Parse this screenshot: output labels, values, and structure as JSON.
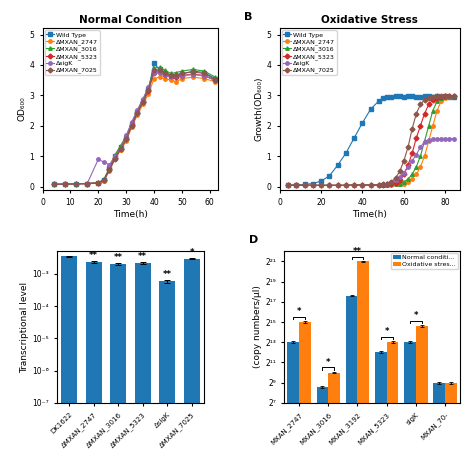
{
  "chart_data": [
    {
      "type": "line",
      "title": "Normal Condition",
      "xlabel": "Time(h)",
      "ylabel": "OD₆₀₀",
      "x": [
        4,
        8,
        12,
        16,
        20,
        22,
        24,
        26,
        28,
        30,
        32,
        34,
        36,
        38,
        40,
        42,
        44,
        46,
        48,
        50,
        54,
        58,
        62
      ],
      "series": [
        {
          "name": "Wild Type",
          "marker": "square",
          "values": [
            0.07,
            0.08,
            0.09,
            0.1,
            0.12,
            0.22,
            0.6,
            1.0,
            1.3,
            1.6,
            2.05,
            2.45,
            2.8,
            3.2,
            4.05,
            3.85,
            3.75,
            3.65,
            3.65,
            3.7,
            3.8,
            3.75,
            3.55
          ]
        },
        {
          "name": "ΔMXAN_2747",
          "marker": "circle",
          "values": [
            0.07,
            0.08,
            0.09,
            0.1,
            0.11,
            0.18,
            0.52,
            0.9,
            1.2,
            1.5,
            1.95,
            2.35,
            2.7,
            3.05,
            3.55,
            3.6,
            3.55,
            3.5,
            3.45,
            3.55,
            3.6,
            3.55,
            3.45
          ]
        },
        {
          "name": "ΔMXAN_3016",
          "marker": "triangle",
          "values": [
            0.07,
            0.08,
            0.09,
            0.1,
            0.12,
            0.24,
            0.62,
            1.05,
            1.35,
            1.65,
            2.1,
            2.5,
            2.85,
            3.25,
            3.9,
            3.92,
            3.82,
            3.72,
            3.75,
            3.8,
            3.85,
            3.8,
            3.6
          ]
        },
        {
          "name": "ΔMXAN_5323",
          "marker": "diamond",
          "values": [
            0.07,
            0.08,
            0.09,
            0.1,
            0.12,
            0.2,
            0.57,
            0.95,
            1.25,
            1.58,
            2.02,
            2.42,
            2.77,
            3.15,
            3.75,
            3.78,
            3.68,
            3.62,
            3.6,
            3.65,
            3.7,
            3.65,
            3.5
          ]
        },
        {
          "name": "ΔsigK",
          "marker": "circle",
          "values": [
            0.07,
            0.08,
            0.09,
            0.1,
            0.9,
            0.8,
            0.72,
            1.0,
            1.25,
            1.68,
            2.12,
            2.52,
            2.88,
            3.28,
            3.72,
            3.75,
            3.68,
            3.62,
            3.62,
            3.65,
            3.68,
            3.65,
            3.48
          ]
        },
        {
          "name": "ΔMXAN_7025",
          "marker": "diamond",
          "values": [
            0.07,
            0.08,
            0.09,
            0.1,
            0.11,
            0.2,
            0.56,
            0.92,
            1.22,
            1.55,
            2.0,
            2.42,
            2.78,
            3.18,
            3.82,
            3.84,
            3.74,
            3.67,
            3.68,
            3.72,
            3.77,
            3.72,
            3.52
          ]
        }
      ],
      "xlim": [
        0,
        63
      ],
      "xticks": [
        0,
        10,
        20,
        30,
        40,
        50,
        60
      ],
      "ylim": [
        -0.1,
        5.2
      ],
      "yticks": [
        0,
        1,
        2,
        3,
        4,
        5
      ],
      "legend": "upper left"
    },
    {
      "type": "line",
      "title": "Oxidative Stress",
      "xlabel": "Time(h)",
      "ylabel": "Growth(OD₆₀₀)",
      "x": [
        4,
        8,
        12,
        16,
        20,
        24,
        28,
        32,
        36,
        40,
        44,
        48,
        50,
        52,
        54,
        56,
        58,
        60,
        62,
        64,
        66,
        68,
        70,
        72,
        74,
        76,
        78,
        80,
        82,
        84
      ],
      "series": [
        {
          "name": "Wild Type",
          "marker": "square",
          "values": [
            0.05,
            0.06,
            0.07,
            0.1,
            0.18,
            0.35,
            0.7,
            1.1,
            1.6,
            2.1,
            2.55,
            2.82,
            2.92,
            2.95,
            2.95,
            2.97,
            2.97,
            2.96,
            2.97,
            2.97,
            2.96,
            2.96,
            2.97,
            2.97,
            2.96,
            2.97,
            2.96,
            2.97,
            2.96,
            2.96
          ]
        },
        {
          "name": "ΔMXAN_2747",
          "marker": "circle",
          "values": [
            0.04,
            0.04,
            0.04,
            0.04,
            0.04,
            0.04,
            0.04,
            0.04,
            0.05,
            0.05,
            0.05,
            0.05,
            0.05,
            0.06,
            0.06,
            0.07,
            0.08,
            0.1,
            0.15,
            0.25,
            0.4,
            0.65,
            1.0,
            1.5,
            2.0,
            2.5,
            2.8,
            2.9,
            2.95,
            2.97
          ]
        },
        {
          "name": "ΔMXAN_3016",
          "marker": "triangle",
          "values": [
            0.04,
            0.04,
            0.04,
            0.04,
            0.04,
            0.04,
            0.04,
            0.04,
            0.05,
            0.05,
            0.05,
            0.05,
            0.05,
            0.06,
            0.07,
            0.08,
            0.1,
            0.15,
            0.25,
            0.4,
            0.65,
            1.0,
            1.5,
            2.0,
            2.5,
            2.8,
            2.9,
            2.95,
            2.97,
            2.97
          ]
        },
        {
          "name": "ΔMXAN_5323",
          "marker": "diamond",
          "values": [
            0.04,
            0.04,
            0.04,
            0.04,
            0.04,
            0.04,
            0.04,
            0.04,
            0.05,
            0.05,
            0.05,
            0.05,
            0.06,
            0.07,
            0.08,
            0.12,
            0.2,
            0.4,
            0.7,
            1.1,
            1.6,
            2.0,
            2.4,
            2.7,
            2.85,
            2.92,
            2.95,
            2.97,
            2.97,
            2.97
          ]
        },
        {
          "name": "ΔsigK",
          "marker": "circle",
          "values": [
            0.04,
            0.04,
            0.04,
            0.04,
            0.04,
            0.04,
            0.04,
            0.04,
            0.04,
            0.05,
            0.05,
            0.06,
            0.07,
            0.1,
            0.15,
            0.22,
            0.32,
            0.45,
            0.65,
            0.85,
            1.05,
            1.3,
            1.48,
            1.52,
            1.55,
            1.57,
            1.58,
            1.58,
            1.58,
            1.58
          ]
        },
        {
          "name": "ΔMXAN_7025",
          "marker": "diamond",
          "values": [
            0.04,
            0.04,
            0.04,
            0.04,
            0.04,
            0.04,
            0.04,
            0.04,
            0.05,
            0.05,
            0.05,
            0.06,
            0.07,
            0.1,
            0.16,
            0.28,
            0.5,
            0.85,
            1.3,
            1.9,
            2.4,
            2.7,
            2.85,
            2.92,
            2.95,
            2.97,
            2.97,
            2.97,
            2.97,
            2.97
          ]
        }
      ],
      "xlim": [
        0,
        87
      ],
      "xticks": [
        0,
        20,
        40,
        60,
        80
      ],
      "ylim": [
        -0.1,
        5.2
      ],
      "yticks": [
        0,
        1,
        2,
        3,
        4,
        5
      ],
      "legend": "upper left",
      "annotations": [
        {
          "text": "B"
        }
      ]
    },
    {
      "type": "bar",
      "ylabel": "Transcriptional level",
      "categories": [
        "DK1622",
        "ΔMXAN_2747",
        "ΔMXAN_3016",
        "ΔMXAN_5323",
        "ΔsigK",
        "ΔMXAN_7025"
      ],
      "values": [
        0.0035,
        0.0023,
        0.00205,
        0.0022,
        0.00058,
        0.00295
      ],
      "errors": [
        0.0001,
        0.00016,
        0.00015,
        0.00014,
        6e-05,
        0.00016
      ],
      "log": "y",
      "ylim": [
        1e-07,
        0.005
      ],
      "yticks": [
        {
          "value": 1e-07,
          "label": "10⁻⁷"
        },
        {
          "value": 1e-06,
          "label": "10⁻⁶"
        },
        {
          "value": 1e-05,
          "label": "10⁻⁵"
        },
        {
          "value": 0.0001,
          "label": "10⁻⁴"
        },
        {
          "value": 0.001,
          "label": "10⁻³"
        }
      ],
      "annotations": [
        {
          "category": "ΔMXAN_2747",
          "text": "**"
        },
        {
          "category": "ΔMXAN_3016",
          "text": "**"
        },
        {
          "category": "ΔMXAN_5323",
          "text": "**"
        },
        {
          "category": "ΔsigK",
          "text": "**"
        },
        {
          "category": "ΔMXAN_7025",
          "text": "*"
        }
      ]
    },
    {
      "type": "bar",
      "ylabel": "(copy numbers/μl)",
      "categories": [
        "MXAN_2747",
        "MXAN_3016",
        "MXAN_3192",
        "MXAN_5323",
        "sigK",
        "MXAN_70-"
      ],
      "series": [
        {
          "name": "Normal conditi...",
          "values": [
            8192,
            384,
            196608,
            4096,
            8192,
            512
          ],
          "errors": [
            500,
            30,
            8000,
            300,
            500,
            40
          ]
        },
        {
          "name": "Oxidative stres...",
          "values": [
            32768,
            1024,
            2097152,
            8192,
            24576,
            512
          ],
          "errors": [
            1500,
            60,
            50000,
            500,
            1500,
            40
          ]
        }
      ],
      "log": "y",
      "ylim": [
        128,
        4194304
      ],
      "yticks": [
        {
          "value": 128,
          "label": "2⁷"
        },
        {
          "value": 512,
          "label": "2⁹"
        },
        {
          "value": 2048,
          "label": "2¹¹"
        },
        {
          "value": 8192,
          "label": "2¹³"
        },
        {
          "value": 32768,
          "label": "2¹⁵"
        },
        {
          "value": 131072,
          "label": "2¹⁷"
        },
        {
          "value": 524288,
          "label": "2¹⁹"
        },
        {
          "value": 2097152,
          "label": "2²¹"
        }
      ],
      "legend": "upper right",
      "annotations": [
        {
          "category": "MXAN_2747",
          "text": "*"
        },
        {
          "category": "MXAN_3016",
          "text": "*"
        },
        {
          "category": "MXAN_3192",
          "text": "**"
        },
        {
          "category": "MXAN_5323",
          "text": "*"
        },
        {
          "category": "sigK",
          "text": "*"
        },
        {
          "text": "D"
        }
      ]
    }
  ]
}
